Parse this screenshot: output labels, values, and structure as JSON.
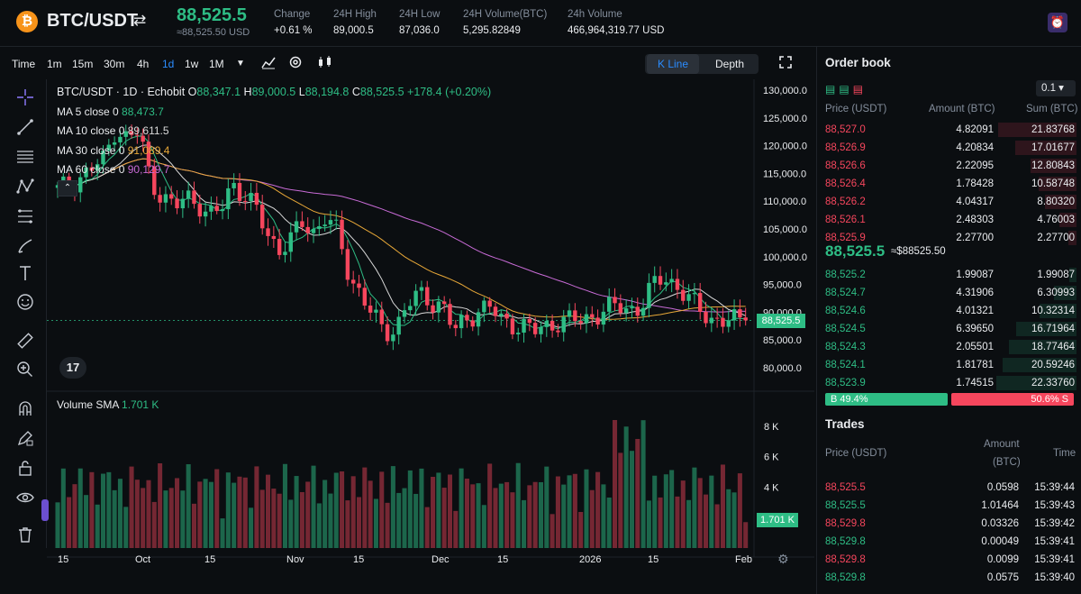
{
  "header": {
    "coin_symbol": "₿",
    "pair": "BTC/USDT",
    "swap_icon": "swap-arrows-icon",
    "last_price": "88,525.5",
    "last_price_usd": "≈88,525.50 USD",
    "stats": [
      {
        "label": "Change",
        "value": "+0.61 %",
        "color": "#2ebd85"
      },
      {
        "label": "24H High",
        "value": "89,000.5",
        "color": "#eaecef"
      },
      {
        "label": "24H Low",
        "value": "87,036.0",
        "color": "#eaecef"
      },
      {
        "label": "24H Volume(BTC)",
        "value": "5,295.82849",
        "color": "#eaecef"
      },
      {
        "label": "24h Volume",
        "value": "466,964,319.77 USD",
        "color": "#eaecef"
      }
    ]
  },
  "toolbar": {
    "time_label": "Time",
    "intervals": [
      "1m",
      "15m",
      "30m",
      "4h",
      "1d",
      "1w",
      "1M"
    ],
    "active_interval": "1d",
    "view_kline": "K Line",
    "view_depth": "Depth"
  },
  "chart": {
    "title": "BTC/USDT · 1D · Echobit",
    "ohlc": {
      "o_label": "O",
      "o": "88,347.1",
      "h_label": "H",
      "h": "89,000.5",
      "l_label": "L",
      "l": "88,194.8",
      "c_label": "C",
      "c": "88,525.5",
      "change": "+178.4 (+0.20%)"
    },
    "ma": [
      {
        "label": "MA 5 close 0",
        "value": "88,473.7",
        "color": "#2ebd85"
      },
      {
        "label": "MA 10 close 0",
        "value": "89,611.5",
        "color": "#d9d9d9"
      },
      {
        "label": "MA 30 close 0",
        "value": "91,089.4",
        "color": "#e8a838"
      },
      {
        "label": "MA 60 close 0",
        "value": "90,129.7",
        "color": "#c86bd6"
      }
    ],
    "price_ticks": [
      "130,000.0",
      "125,000.0",
      "120,000.0",
      "115,000.0",
      "110,000.0",
      "105,000.0",
      "100,000.0",
      "95,000.0",
      "90,000.0",
      "85,000.0",
      "80,000.0"
    ],
    "price_tag": "88,525.5",
    "volume_label": "Volume SMA",
    "volume_value": "1.701 K",
    "volume_ticks": [
      "8 K",
      "6 K",
      "4 K",
      "2 K"
    ],
    "volume_tag": "1.701 K",
    "x_ticks": [
      "15",
      "Oct",
      "15",
      "Nov",
      "15",
      "Dec",
      "15",
      "2026",
      "15",
      "Feb"
    ]
  },
  "chart_data": {
    "type": "candlestick",
    "series": [
      {
        "name": "BTC/USDT",
        "values": [
          112000,
          113000,
          114500,
          116000,
          117500,
          123500,
          121000,
          122500,
          113500,
          111000,
          108500,
          111000,
          110000,
          107000,
          108500,
          113500,
          111000,
          108500,
          104000,
          101500,
          103000,
          106000,
          104500,
          107500,
          104000,
          96500,
          93500,
          89500,
          86000,
          87500,
          91500,
          93000,
          92000,
          91500,
          86500,
          88500,
          90500,
          91000,
          88500,
          88000,
          87500,
          86500,
          87500,
          88500,
          88500,
          88500,
          89500,
          90500,
          91000,
          90500,
          91000,
          94500,
          96500,
          95000,
          92500,
          90500,
          89000,
          88500,
          88350,
          88525.5
        ]
      },
      {
        "name": "MA 5 close 0",
        "values": [
          88473.7
        ]
      },
      {
        "name": "MA 10 close 0",
        "values": [
          89611.5
        ]
      },
      {
        "name": "MA 30 close 0",
        "values": [
          91089.4
        ]
      },
      {
        "name": "MA 60 close 0",
        "values": [
          90129.7
        ]
      }
    ],
    "ylim": [
      80000,
      130000
    ],
    "volume_ylim": [
      0,
      9000
    ],
    "volume_last": 1701
  },
  "orderbook": {
    "title": "Order book",
    "precision": "0.1 ▾",
    "col_price": "Price (USDT)",
    "col_amount": "Amount (BTC)",
    "col_sum": "Sum (BTC)",
    "asks": [
      {
        "price": "88,527.0",
        "amount": "4.82091",
        "sum": "21.83768"
      },
      {
        "price": "88,526.9",
        "amount": "4.20834",
        "sum": "17.01677"
      },
      {
        "price": "88,526.6",
        "amount": "2.22095",
        "sum": "12.80843"
      },
      {
        "price": "88,526.4",
        "amount": "1.78428",
        "sum": "10.58748"
      },
      {
        "price": "88,526.2",
        "amount": "4.04317",
        "sum": "8.80320"
      },
      {
        "price": "88,526.1",
        "amount": "2.48303",
        "sum": "4.76003"
      },
      {
        "price": "88,525.9",
        "amount": "2.27700",
        "sum": "2.27700"
      }
    ],
    "mid_price": "88,525.5",
    "mid_usd": "≈$88525.50",
    "bids": [
      {
        "price": "88,525.2",
        "amount": "1.99087",
        "sum": "1.99087"
      },
      {
        "price": "88,524.7",
        "amount": "4.31906",
        "sum": "6.30993"
      },
      {
        "price": "88,524.6",
        "amount": "4.01321",
        "sum": "10.32314"
      },
      {
        "price": "88,524.5",
        "amount": "6.39650",
        "sum": "16.71964"
      },
      {
        "price": "88,524.3",
        "amount": "2.05501",
        "sum": "18.77464"
      },
      {
        "price": "88,524.1",
        "amount": "1.81781",
        "sum": "20.59246"
      },
      {
        "price": "88,523.9",
        "amount": "1.74515",
        "sum": "22.33760"
      }
    ],
    "buy_ratio": "B 49.4%",
    "sell_ratio": "50.6% S",
    "buy_fraction": 0.494
  },
  "trades": {
    "title": "Trades",
    "col_price": "Price (USDT)",
    "col_amount": "Amount",
    "col_amount_unit": "(BTC)",
    "col_time": "Time",
    "rows": [
      {
        "price": "88,525.5",
        "amount": "0.0598",
        "time": "15:39:44",
        "side": "sell"
      },
      {
        "price": "88,525.5",
        "amount": "1.01464",
        "time": "15:39:43",
        "side": "buy"
      },
      {
        "price": "88,529.8",
        "amount": "0.03326",
        "time": "15:39:42",
        "side": "sell"
      },
      {
        "price": "88,529.8",
        "amount": "0.00049",
        "time": "15:39:41",
        "side": "buy"
      },
      {
        "price": "88,529.8",
        "amount": "0.0099",
        "time": "15:39:41",
        "side": "sell"
      },
      {
        "price": "88,529.8",
        "amount": "0.0575",
        "time": "15:39:40",
        "side": "buy"
      }
    ]
  }
}
